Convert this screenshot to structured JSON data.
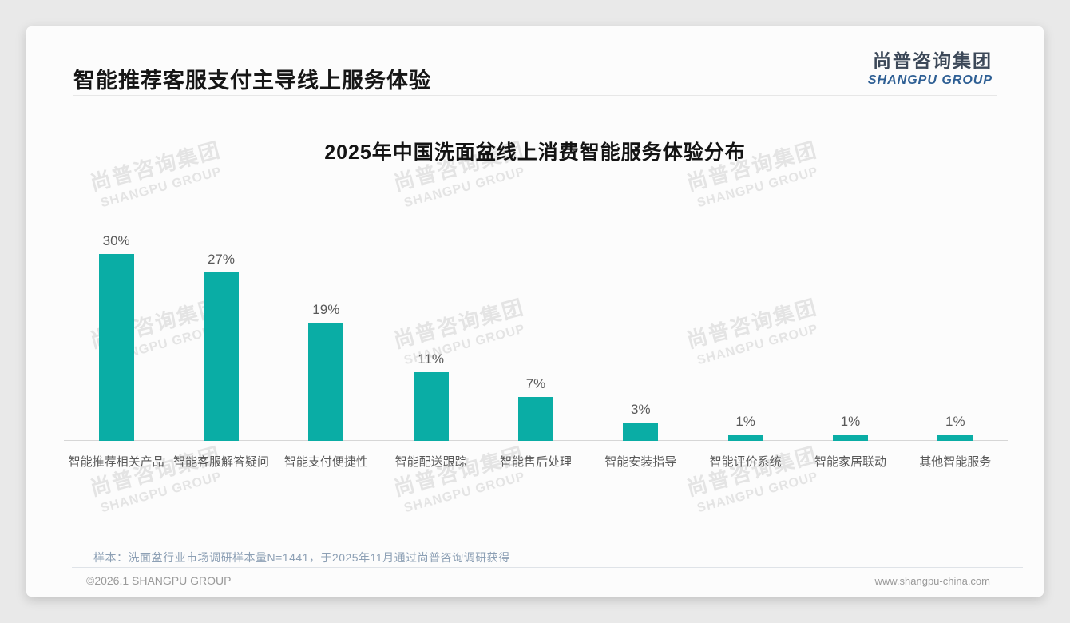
{
  "header": {
    "title": "智能推荐客服支付主导线上服务体验"
  },
  "logo": {
    "cn": "尚普咨询集团",
    "en": "SHANGPU GROUP"
  },
  "watermark": {
    "cn": "尚普咨询集团",
    "en": "SHANGPU GROUP"
  },
  "chart_data": {
    "type": "bar",
    "title": "2025年中国洗面盆线上消费智能服务体验分布",
    "categories": [
      "智能推荐相关产品",
      "智能客服解答疑问",
      "智能支付便捷性",
      "智能配送跟踪",
      "智能售后处理",
      "智能安装指导",
      "智能评价系统",
      "智能家居联动",
      "其他智能服务"
    ],
    "values": [
      30,
      27,
      19,
      11,
      7,
      3,
      1,
      1,
      1
    ],
    "value_labels": [
      "30%",
      "27%",
      "19%",
      "11%",
      "7%",
      "3%",
      "1%",
      "1%",
      "1%"
    ],
    "unit": "%",
    "bar_color": "#0aada5",
    "ylim": [
      0,
      32
    ],
    "grid": false,
    "legend": "none",
    "xlabel": "",
    "ylabel": ""
  },
  "footnote": "样本：洗面盆行业市场调研样本量N=1441，于2025年11月通过尚普咨询调研获得",
  "footer": {
    "left": "©2026.1 SHANGPU GROUP",
    "right": "www.shangpu-china.com"
  }
}
